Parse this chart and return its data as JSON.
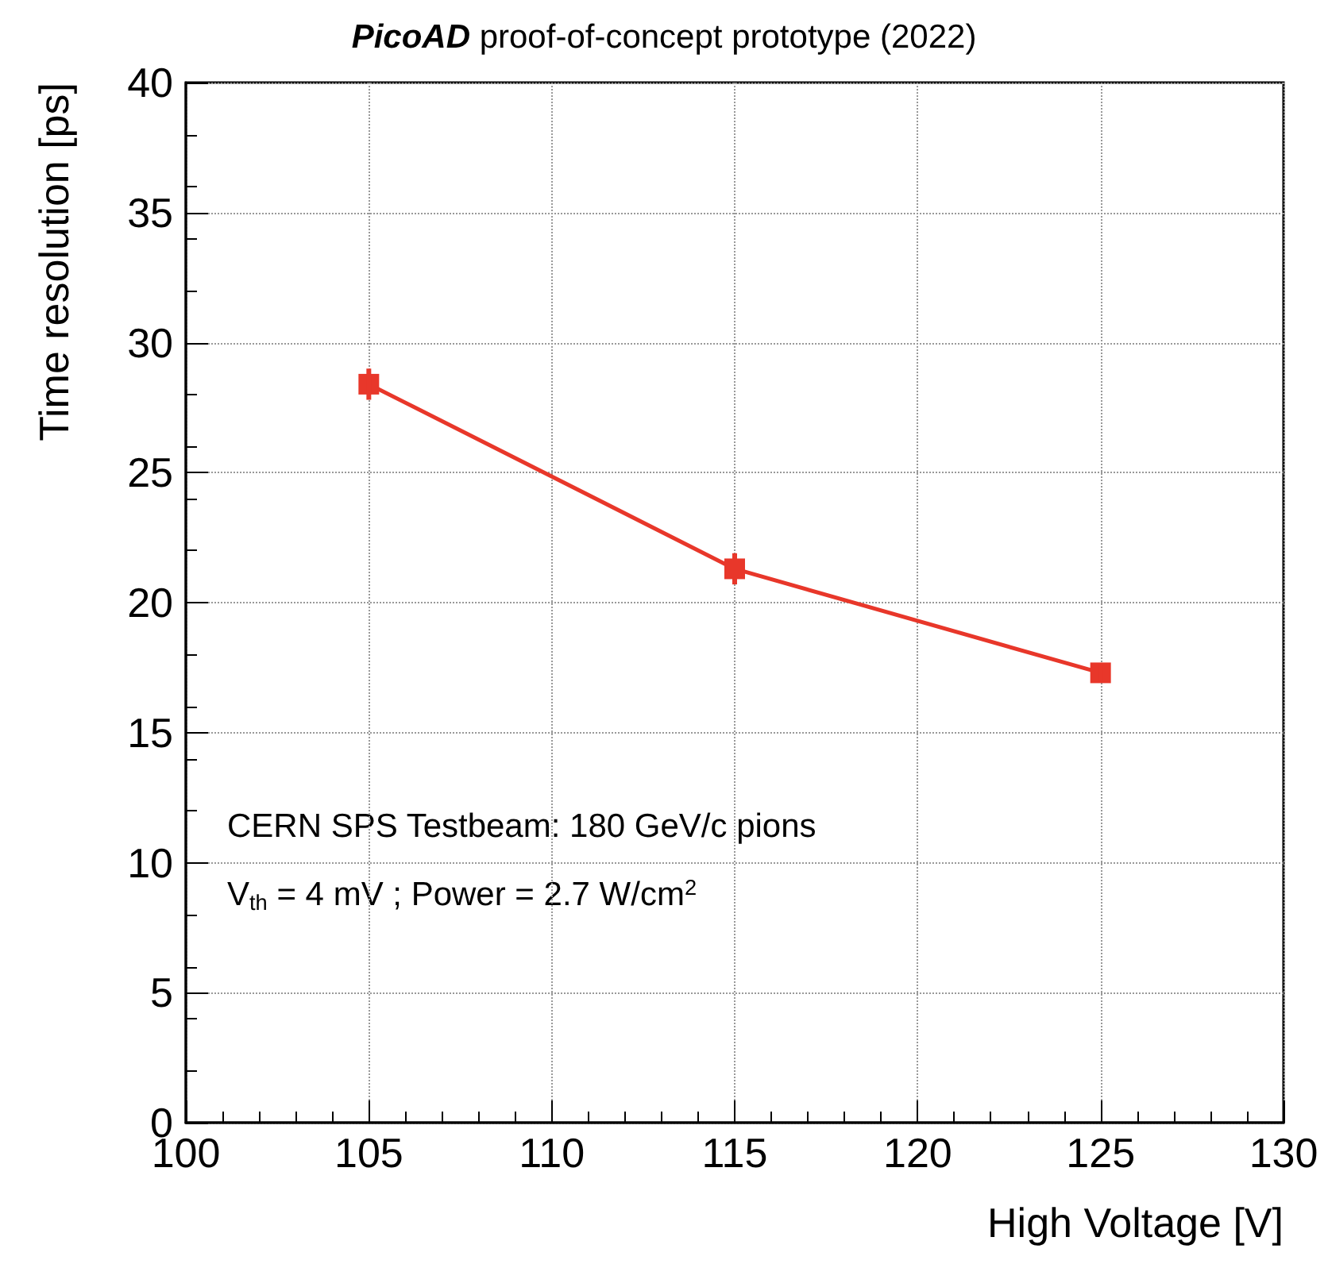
{
  "chart_data": {
    "type": "line",
    "title": "PicoAD proof-of-concept prototype (2022)",
    "xlabel": "High Voltage [V]",
    "ylabel": "Time resolution [ps]",
    "x": [
      105,
      115,
      125
    ],
    "series": [
      {
        "color": "#e8372a",
        "values": [
          28.4,
          21.3,
          17.3
        ],
        "errors": [
          0.6,
          0.6,
          0.3
        ]
      }
    ],
    "xlim": [
      100,
      130
    ],
    "xticks": [
      100,
      105,
      110,
      115,
      120,
      125,
      130
    ],
    "ylim": [
      0,
      40
    ],
    "yticks": [
      0,
      5,
      10,
      15,
      20,
      25,
      30,
      35,
      40
    ],
    "grid": true,
    "marker": "square",
    "line_style": "solid",
    "annotations": [
      "CERN SPS Testbeam: 180 GeV/c pions",
      "V$_{th}$ = 4 mV ; Power = 2.7 W/cm$^{2}$"
    ]
  }
}
